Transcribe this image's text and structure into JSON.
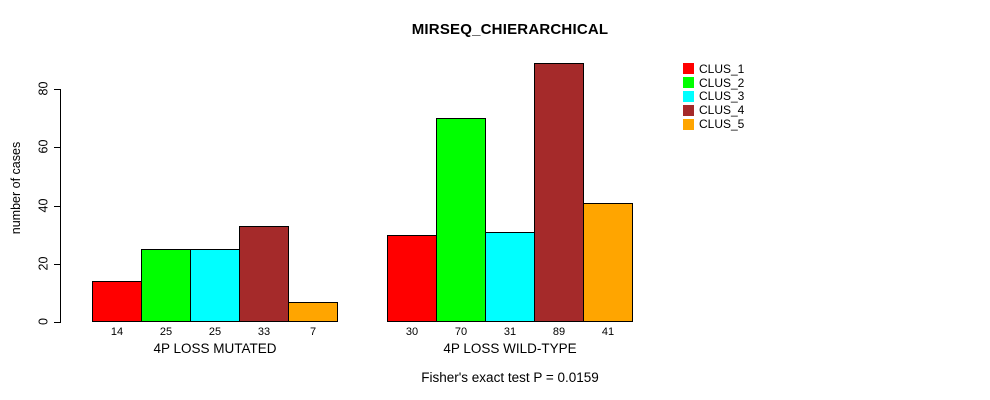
{
  "chart_data": {
    "type": "bar",
    "title": "MIRSEQ_CHIERARCHICAL",
    "xlabel": "",
    "ylabel": "number of cases",
    "categories": [
      "4P LOSS MUTATED",
      "4P LOSS WILD-TYPE"
    ],
    "series": [
      {
        "name": "CLUS_1",
        "color": "#FF0000",
        "values": [
          14,
          30
        ]
      },
      {
        "name": "CLUS_2",
        "color": "#00FF00",
        "values": [
          25,
          70
        ]
      },
      {
        "name": "CLUS_3",
        "color": "#00FFFF",
        "values": [
          25,
          31
        ]
      },
      {
        "name": "CLUS_4",
        "color": "#A52A2A",
        "values": [
          33,
          89
        ]
      },
      {
        "name": "CLUS_5",
        "color": "#FFA500",
        "values": [
          7,
          41
        ]
      }
    ],
    "yticks": [
      0,
      20,
      40,
      60,
      80
    ],
    "ylim": [
      0,
      89
    ],
    "grid": false,
    "bar_value_labels": true,
    "bar_border_color": "#000000",
    "legend_position": "right-top",
    "annotation": "Fisher's exact test P = 0.0159"
  }
}
